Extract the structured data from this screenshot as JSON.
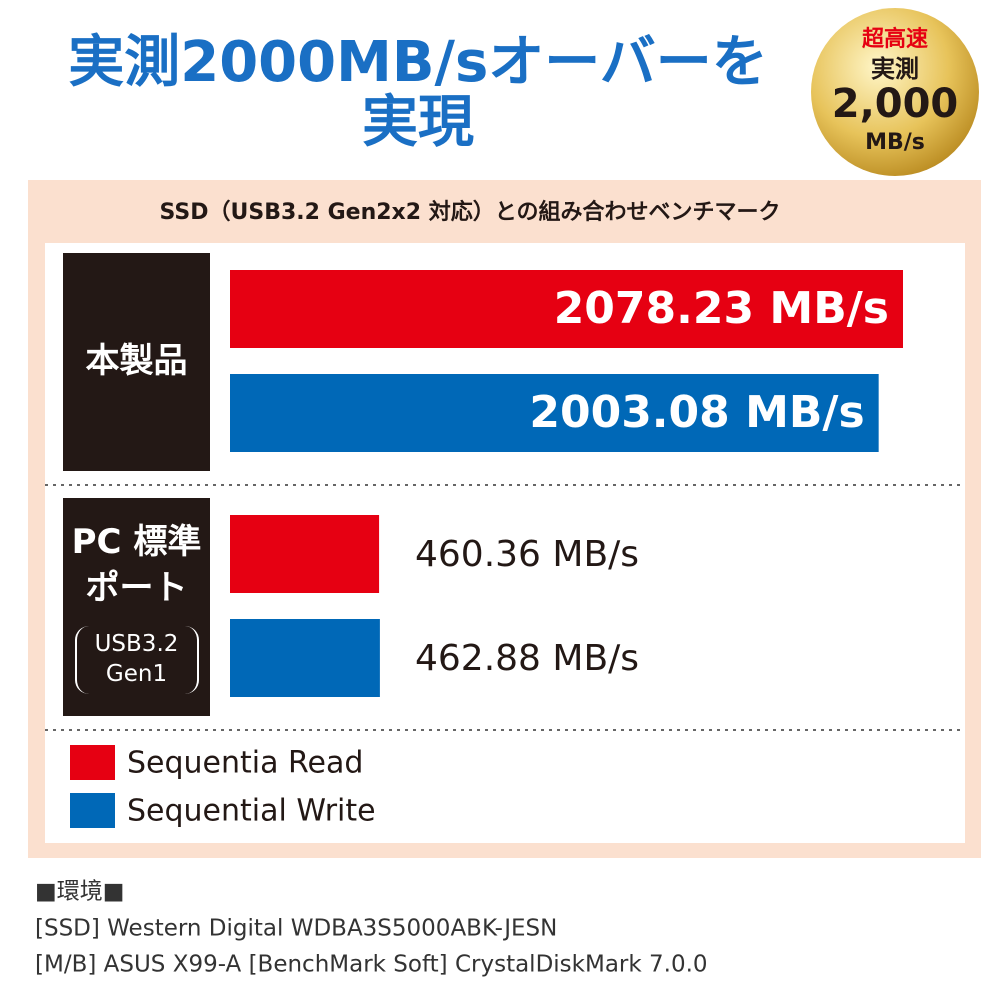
{
  "headline": [
    "実測2000MB/sオーバーを",
    "実現"
  ],
  "badge": {
    "top": "超高速",
    "middle": "実測",
    "number": "2,000",
    "unit": "MB/s"
  },
  "chart_data": {
    "type": "hbar",
    "title": "SSD（USB3.2 Gen2x2 対応）との組み合わせベンチマーク",
    "categories": [
      "本製品",
      "PC 標準ポート"
    ],
    "category_notes": [
      null,
      "USB3.2 Gen1"
    ],
    "series": [
      {
        "name": "Sequentia Read",
        "color": "#e60012",
        "values": [
          2078.23,
          460.36
        ],
        "value_labels": [
          "2078.23 MB/s",
          "460.36 MB/s"
        ]
      },
      {
        "name": "Sequential Write",
        "color": "#0068b7",
        "values": [
          2003.08,
          462.88
        ],
        "value_labels": [
          "2003.08 MB/s",
          "462.88 MB/s"
        ]
      }
    ]
  },
  "footer": {
    "heading": "■環境■",
    "lines": [
      "[SSD] Western Digital WDBA3S5000ABK-JESN",
      "[M/B] ASUS X99-A [BenchMark Soft] CrystalDiskMark 7.0.0"
    ]
  }
}
